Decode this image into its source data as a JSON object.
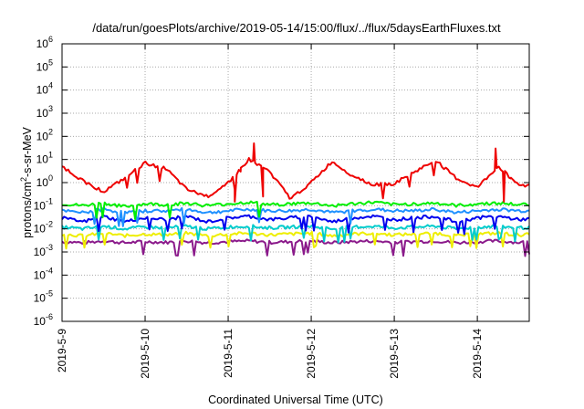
{
  "chart_data": {
    "type": "line",
    "title": "/data/run/goesPlots/archive/2019-05-14/15:00/flux/../flux/5daysEarthFluxes.txt",
    "xlabel": "Coordinated Universal Time (UTC)",
    "ylabel_parts": [
      "protons/cm",
      "2",
      "-s-sr-MeV"
    ],
    "y_scale": "log",
    "ylim": [
      1e-06,
      1000000.0
    ],
    "y_ticks": [
      {
        "value": 1e-06,
        "base": "10",
        "exp": "-6"
      },
      {
        "value": 1e-05,
        "base": "10",
        "exp": "-5"
      },
      {
        "value": 0.0001,
        "base": "10",
        "exp": "-4"
      },
      {
        "value": 0.001,
        "base": "10",
        "exp": "-3"
      },
      {
        "value": 0.01,
        "base": "10",
        "exp": "-2"
      },
      {
        "value": 0.1,
        "base": "10",
        "exp": "-1"
      },
      {
        "value": 1,
        "base": "10",
        "exp": "0"
      },
      {
        "value": 10,
        "base": "10",
        "exp": "1"
      },
      {
        "value": 100,
        "base": "10",
        "exp": "2"
      },
      {
        "value": 1000,
        "base": "10",
        "exp": "3"
      },
      {
        "value": 10000,
        "base": "10",
        "exp": "4"
      },
      {
        "value": 100000,
        "base": "10",
        "exp": "5"
      },
      {
        "value": 1000000,
        "base": "10",
        "exp": "6"
      }
    ],
    "xlim": [
      "2019-5-9 00:00",
      "2019-5-14 15:00"
    ],
    "x_ticks": [
      "2019-5-9",
      "2019-5-10",
      "2019-5-11",
      "2019-5-12",
      "2019-5-13",
      "2019-5-14"
    ],
    "grid": true,
    "x": [
      0,
      0.25,
      0.5,
      0.75,
      1,
      1.25,
      1.5,
      1.75,
      2,
      2.25,
      2.5,
      2.75,
      3,
      3.25,
      3.5,
      3.75,
      4,
      4.25,
      4.5,
      4.75,
      5,
      5.25,
      5.5,
      5.625
    ],
    "series": [
      {
        "color": "#ee0000",
        "values": [
          5,
          1.2,
          0.4,
          1.5,
          7,
          4,
          0.5,
          0.25,
          1,
          10,
          3,
          0.2,
          1,
          8,
          2,
          0.8,
          0.9,
          3,
          9,
          1.5,
          0.6,
          5,
          0.8,
          0.7
        ],
        "spikes": [
          {
            "x": 2.08,
            "y": 0.15
          },
          {
            "x": 2.15,
            "y": 3
          },
          {
            "x": 2.31,
            "y": 50
          },
          {
            "x": 2.42,
            "y": 0.25
          },
          {
            "x": 5.22,
            "y": 30
          },
          {
            "x": 5.32,
            "y": 0.15
          },
          {
            "x": 5.4,
            "y": 1.5
          }
        ]
      },
      {
        "color": "#00ee00",
        "values": [
          0.12,
          0.1,
          0.13,
          0.09,
          0.12,
          0.11,
          0.13,
          0.1,
          0.12,
          0.14,
          0.11,
          0.12,
          0.13,
          0.1,
          0.12,
          0.14,
          0.11,
          0.12,
          0.13,
          0.1,
          0.12,
          0.13,
          0.11,
          0.12
        ]
      },
      {
        "color": "#1e90ff",
        "values": [
          0.06,
          0.05,
          0.07,
          0.05,
          0.06,
          0.06,
          0.07,
          0.05,
          0.06,
          0.07,
          0.06,
          0.06,
          0.07,
          0.05,
          0.06,
          0.07,
          0.06,
          0.06,
          0.07,
          0.05,
          0.06,
          0.07,
          0.06,
          0.06
        ]
      },
      {
        "color": "#0000ee",
        "values": [
          0.03,
          0.02,
          0.035,
          0.02,
          0.03,
          0.025,
          0.035,
          0.02,
          0.03,
          0.035,
          0.025,
          0.03,
          0.035,
          0.02,
          0.03,
          0.035,
          0.025,
          0.03,
          0.035,
          0.02,
          0.03,
          0.035,
          0.025,
          0.03
        ]
      },
      {
        "color": "#00cccc",
        "values": [
          0.012,
          0.01,
          0.013,
          0.01,
          0.012,
          0.011,
          0.013,
          0.01,
          0.012,
          0.013,
          0.011,
          0.012,
          0.013,
          0.01,
          0.012,
          0.013,
          0.011,
          0.012,
          0.013,
          0.01,
          0.012,
          0.013,
          0.011,
          0.012
        ]
      },
      {
        "color": "#eeee00",
        "values": [
          0.006,
          0.005,
          0.0065,
          0.005,
          0.006,
          0.0055,
          0.0065,
          0.005,
          0.006,
          0.0065,
          0.0055,
          0.006,
          0.0065,
          0.005,
          0.006,
          0.0065,
          0.0055,
          0.006,
          0.0065,
          0.005,
          0.006,
          0.0065,
          0.0055,
          0.006
        ]
      },
      {
        "color": "#8b1a8b",
        "values": [
          0.0028,
          0.0025,
          0.003,
          0.0025,
          0.0028,
          0.0026,
          0.003,
          0.0025,
          0.0028,
          0.003,
          0.0026,
          0.0028,
          0.003,
          0.0025,
          0.0028,
          0.003,
          0.0026,
          0.0028,
          0.003,
          0.0025,
          0.0028,
          0.003,
          0.0026,
          0.0028
        ]
      }
    ]
  }
}
